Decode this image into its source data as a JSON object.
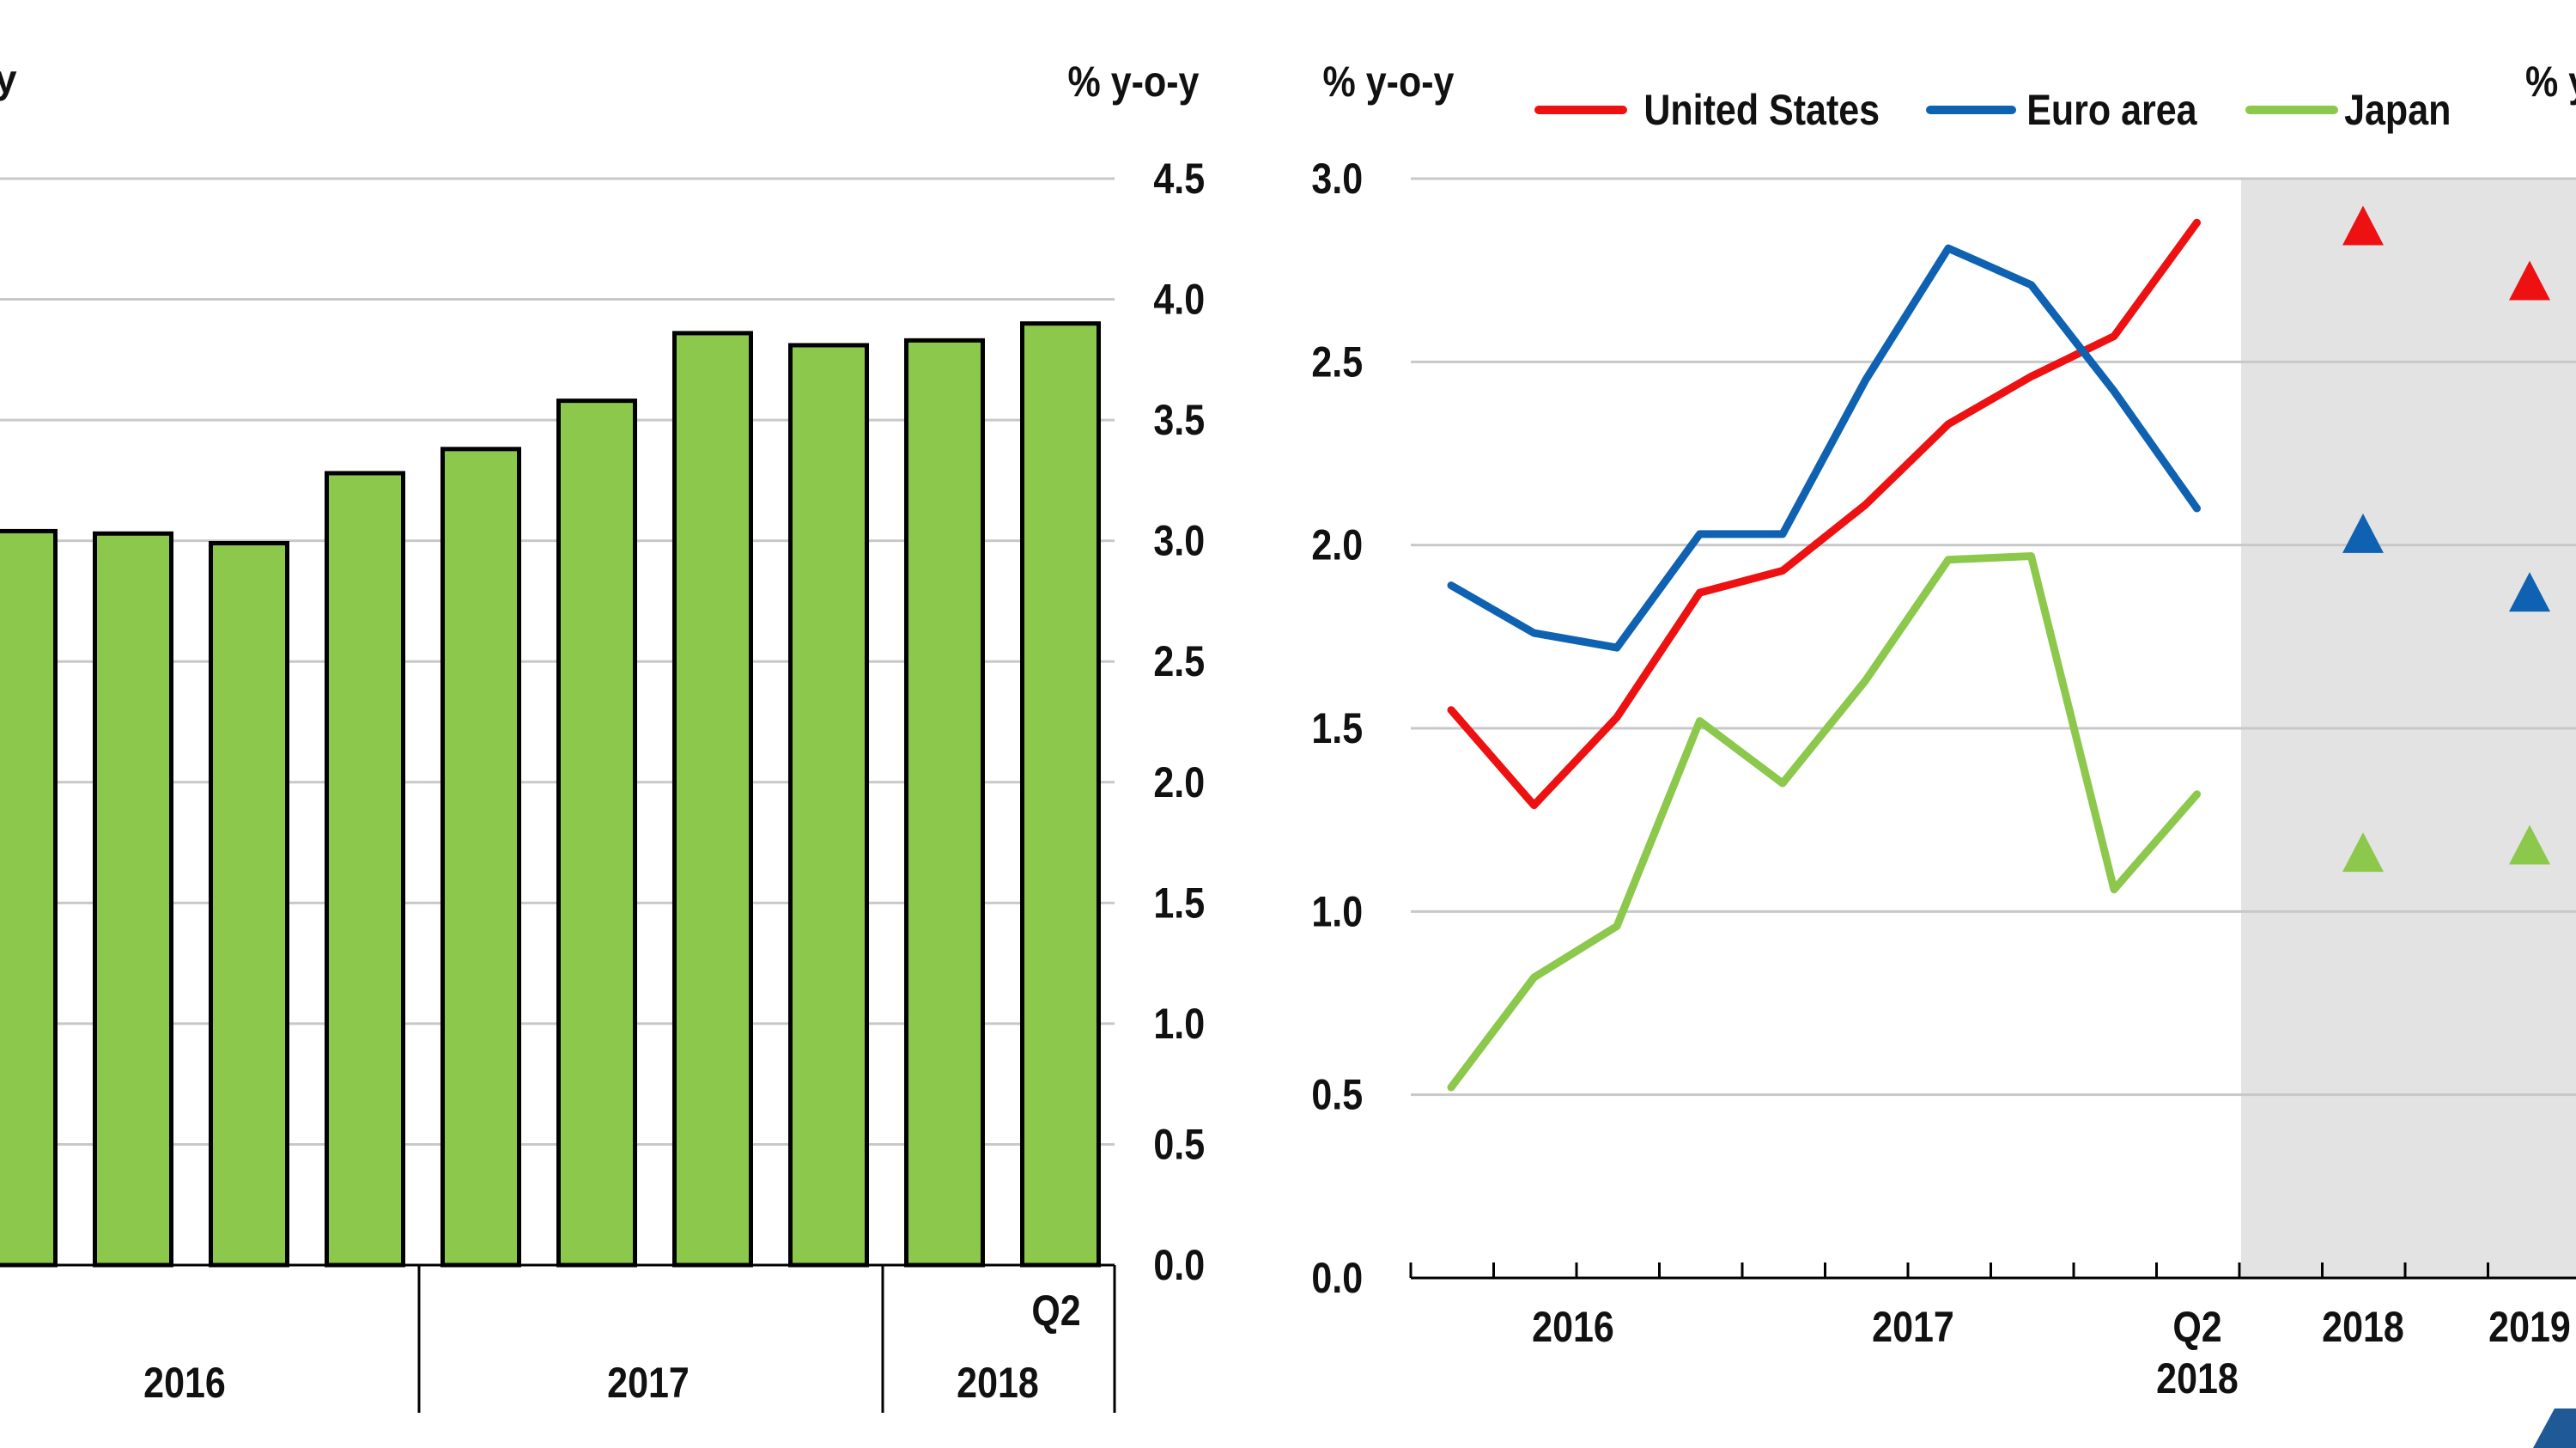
{
  "colors": {
    "bar_fill": "#8cc84b",
    "bar_stroke": "#000000",
    "grid": "#c8c8c8",
    "forecast_band": "#e3e3e3",
    "accent_corner": "#1f5a96"
  },
  "chart_data": [
    {
      "type": "bar",
      "ylabel_left": "y",
      "ylabel_right": "% y-o-y",
      "ylim": [
        0,
        4.5
      ],
      "yticks": [
        "0.0",
        "0.5",
        "1.0",
        "1.5",
        "2.0",
        "2.5",
        "3.0",
        "3.5",
        "4.0",
        "4.5"
      ],
      "x_quarter_label": "Q2",
      "x_year_labels": [
        "2016",
        "2017",
        "2018"
      ],
      "values": [
        3.04,
        3.03,
        2.99,
        3.28,
        3.38,
        3.58,
        3.86,
        3.81,
        3.83,
        3.9
      ],
      "grid": true
    },
    {
      "type": "line",
      "ylabel_left": "% y-o-y",
      "ylabel_right": "% y",
      "ylim": [
        0,
        3.0
      ],
      "yticks": [
        "0.0",
        "0.5",
        "1.0",
        "1.5",
        "2.0",
        "2.5",
        "3.0"
      ],
      "x_year_labels": [
        "2016",
        "2017"
      ],
      "x_last_label": [
        "Q2",
        "2018"
      ],
      "forecast_labels": [
        "2018",
        "2019"
      ],
      "legend": [
        "United States",
        "Euro area",
        "Japan"
      ],
      "legend_position": "top",
      "series": [
        {
          "name": "United States",
          "color": "#ee1111",
          "values": [
            1.55,
            1.29,
            1.53,
            1.87,
            1.93,
            2.11,
            2.33,
            2.46,
            2.57,
            2.88
          ],
          "forecasts": [
            2.87,
            2.72
          ]
        },
        {
          "name": "Euro area",
          "color": "#0f62b2",
          "values": [
            1.89,
            1.76,
            1.72,
            2.03,
            2.03,
            2.45,
            2.81,
            2.71,
            2.42,
            2.1
          ],
          "forecasts": [
            2.03,
            1.87
          ]
        },
        {
          "name": "Japan",
          "color": "#8cc84b",
          "values": [
            0.52,
            0.82,
            0.96,
            1.52,
            1.35,
            1.63,
            1.96,
            1.97,
            1.06,
            1.32
          ],
          "forecasts": [
            1.16,
            1.18
          ]
        }
      ],
      "grid": true
    }
  ]
}
